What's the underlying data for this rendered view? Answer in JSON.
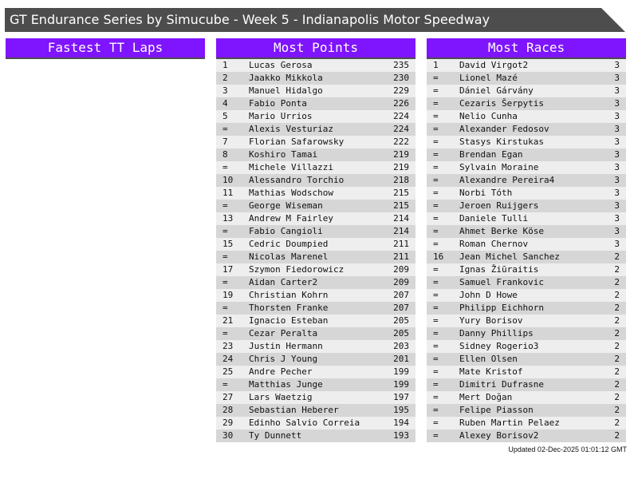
{
  "title": "GT Endurance Series by Simucube - Week 5 - Indianapolis Motor Speedway",
  "colors": {
    "header": "#7f14fe",
    "title_bar": "#4d4d4d",
    "row_light": "#eeeeee",
    "row_dark": "#d6d6d6"
  },
  "panels": [
    {
      "title": "Fastest TT Laps",
      "rows": []
    },
    {
      "title": "Most Points",
      "rows": [
        [
          "1",
          "Lucas Gerosa",
          "235"
        ],
        [
          "2",
          "Jaakko Mikkola",
          "230"
        ],
        [
          "3",
          "Manuel Hidalgo",
          "229"
        ],
        [
          "4",
          "Fabio Ponta",
          "226"
        ],
        [
          "5",
          "Mario Urrios",
          "224"
        ],
        [
          "=",
          "Alexis Vesturiaz",
          "224"
        ],
        [
          "7",
          "Florian Safarowsky",
          "222"
        ],
        [
          "8",
          "Koshiro Tamai",
          "219"
        ],
        [
          "=",
          "Michele Villazzi",
          "219"
        ],
        [
          "10",
          "Alessandro Torchio",
          "218"
        ],
        [
          "11",
          "Mathias Wodschow",
          "215"
        ],
        [
          "=",
          "George Wiseman",
          "215"
        ],
        [
          "13",
          "Andrew M Fairley",
          "214"
        ],
        [
          "=",
          "Fabio Cangioli",
          "214"
        ],
        [
          "15",
          "Cedric Doumpied",
          "211"
        ],
        [
          "=",
          "Nicolas Marenel",
          "211"
        ],
        [
          "17",
          "Szymon Fiedorowicz",
          "209"
        ],
        [
          "=",
          "Aidan Carter2",
          "209"
        ],
        [
          "19",
          "Christian Kohrn",
          "207"
        ],
        [
          "=",
          "Thorsten Franke",
          "207"
        ],
        [
          "21",
          "Ignacio Esteban",
          "205"
        ],
        [
          "=",
          "Cezar Peralta",
          "205"
        ],
        [
          "23",
          "Justin Hermann",
          "203"
        ],
        [
          "24",
          "Chris J Young",
          "201"
        ],
        [
          "25",
          "Andre Pecher",
          "199"
        ],
        [
          "=",
          "Matthias Junge",
          "199"
        ],
        [
          "27",
          "Lars Waetzig",
          "197"
        ],
        [
          "28",
          "Sebastian Heberer",
          "195"
        ],
        [
          "29",
          "Edinho Salvio Correia",
          "194"
        ],
        [
          "30",
          "Ty Dunnett",
          "193"
        ]
      ]
    },
    {
      "title": "Most Races",
      "rows": [
        [
          "1",
          "David Virgot2",
          "3"
        ],
        [
          "=",
          "Lionel Mazé",
          "3"
        ],
        [
          "=",
          "Dániel Gárvány",
          "3"
        ],
        [
          "=",
          "Cezaris Šerpytis",
          "3"
        ],
        [
          "=",
          "Nelio Cunha",
          "3"
        ],
        [
          "=",
          "Alexander Fedosov",
          "3"
        ],
        [
          "=",
          "Stasys Kirstukas",
          "3"
        ],
        [
          "=",
          "Brendan Egan",
          "3"
        ],
        [
          "=",
          "Sylvain Moraine",
          "3"
        ],
        [
          "=",
          "Alexandre Pereira4",
          "3"
        ],
        [
          "=",
          "Norbi Tóth",
          "3"
        ],
        [
          "=",
          "Jeroen Ruijgers",
          "3"
        ],
        [
          "=",
          "Daniele Tulli",
          "3"
        ],
        [
          "=",
          "Ahmet Berke Köse",
          "3"
        ],
        [
          "=",
          "Roman Chernov",
          "3"
        ],
        [
          "16",
          "Jean Michel Sanchez",
          "2"
        ],
        [
          "=",
          "Ignas Žiūraitis",
          "2"
        ],
        [
          "=",
          "Samuel Frankovic",
          "2"
        ],
        [
          "=",
          "John D Howe",
          "2"
        ],
        [
          "=",
          "Philipp Eichhorn",
          "2"
        ],
        [
          "=",
          "Yury Borisov",
          "2"
        ],
        [
          "=",
          "Danny Phillips",
          "2"
        ],
        [
          "=",
          "Sidney Rogerio3",
          "2"
        ],
        [
          "=",
          "Ellen Olsen",
          "2"
        ],
        [
          "=",
          "Mate Kristof",
          "2"
        ],
        [
          "=",
          "Dimitri Dufrasne",
          "2"
        ],
        [
          "=",
          "Mert Doğan",
          "2"
        ],
        [
          "=",
          "Felipe Piasson",
          "2"
        ],
        [
          "=",
          "Ruben Martin Pelaez",
          "2"
        ],
        [
          "=",
          "Alexey Borisov2",
          "2"
        ]
      ]
    }
  ],
  "footer": "Updated 02-Dec-2025 01:01:12 GMT"
}
